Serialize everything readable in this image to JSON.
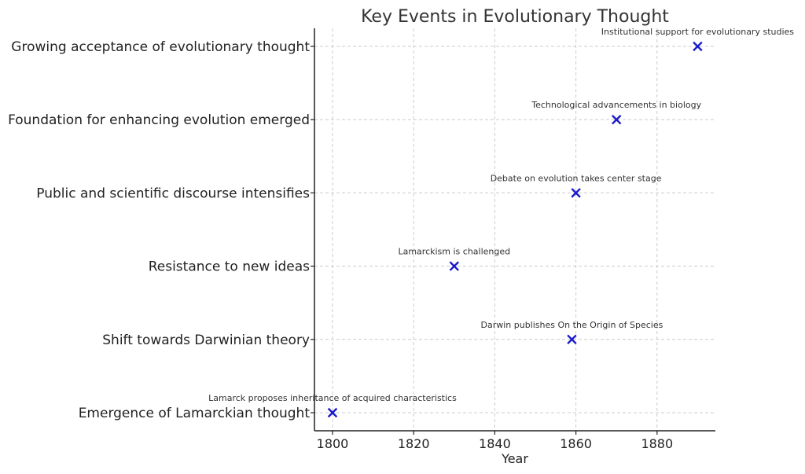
{
  "chart_data": {
    "type": "scatter",
    "title": "Key Events in Evolutionary Thought",
    "xlabel": "Year",
    "ylabel": "",
    "xlim": [
      1796,
      1895
    ],
    "xticks": [
      1800,
      1820,
      1840,
      1860,
      1880
    ],
    "categories": [
      "Emergence of Lamarckian thought",
      "Shift towards Darwinian theory",
      "Resistance to new ideas",
      "Public and scientific discourse intensifies",
      "Foundation for enhancing evolution emerged",
      "Growing acceptance of evolutionary thought"
    ],
    "points": [
      {
        "category": "Emergence of Lamarckian thought",
        "x": 1800,
        "label": "Lamarck proposes inheritance of acquired characteristics"
      },
      {
        "category": "Shift towards Darwinian theory",
        "x": 1859,
        "label": "Darwin publishes On the Origin of Species"
      },
      {
        "category": "Resistance to new ideas",
        "x": 1830,
        "label": "Lamarckism is challenged"
      },
      {
        "category": "Public and scientific discourse intensifies",
        "x": 1860,
        "label": "Debate on evolution takes center stage"
      },
      {
        "category": "Foundation for enhancing evolution emerged",
        "x": 1870,
        "label": "Technological advancements in biology"
      },
      {
        "category": "Growing acceptance of evolutionary thought",
        "x": 1890,
        "label": "Institutional support for evolutionary studies"
      }
    ],
    "marker": "x",
    "marker_color": "#1a1acc",
    "grid": true
  }
}
